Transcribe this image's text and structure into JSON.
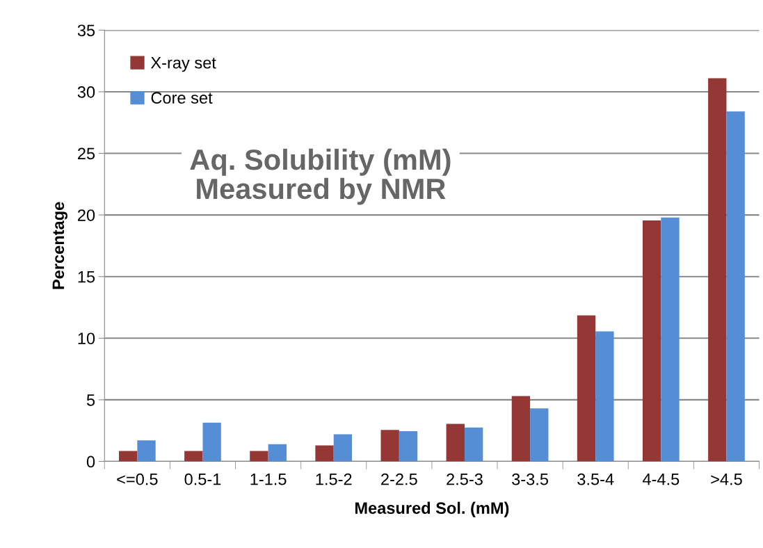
{
  "chart_data": {
    "type": "bar",
    "title": "Aq. Solubility (mM)\nMeasured by NMR",
    "xlabel": "Measured Sol. (mM)",
    "ylabel": "Percentage",
    "categories": [
      "<=0.5",
      "0.5-1",
      "1-1.5",
      "1.5-2",
      "2-2.5",
      "2.5-3",
      "3-3.5",
      "3.5-4",
      "4-4.5",
      ">4.5"
    ],
    "series": [
      {
        "name": "X-ray set",
        "color": "#953735",
        "values": [
          0.85,
          0.85,
          0.85,
          1.3,
          2.55,
          3.05,
          5.3,
          11.85,
          19.55,
          31.1
        ]
      },
      {
        "name": "Core set",
        "color": "#558ed5",
        "values": [
          1.7,
          3.15,
          1.4,
          2.2,
          2.45,
          2.75,
          4.3,
          10.55,
          19.8,
          28.4
        ]
      }
    ],
    "ylim": [
      0,
      35
    ],
    "yticks": [
      0,
      5,
      10,
      15,
      20,
      25,
      30,
      35
    ],
    "grid": "y",
    "legend": "top left"
  }
}
